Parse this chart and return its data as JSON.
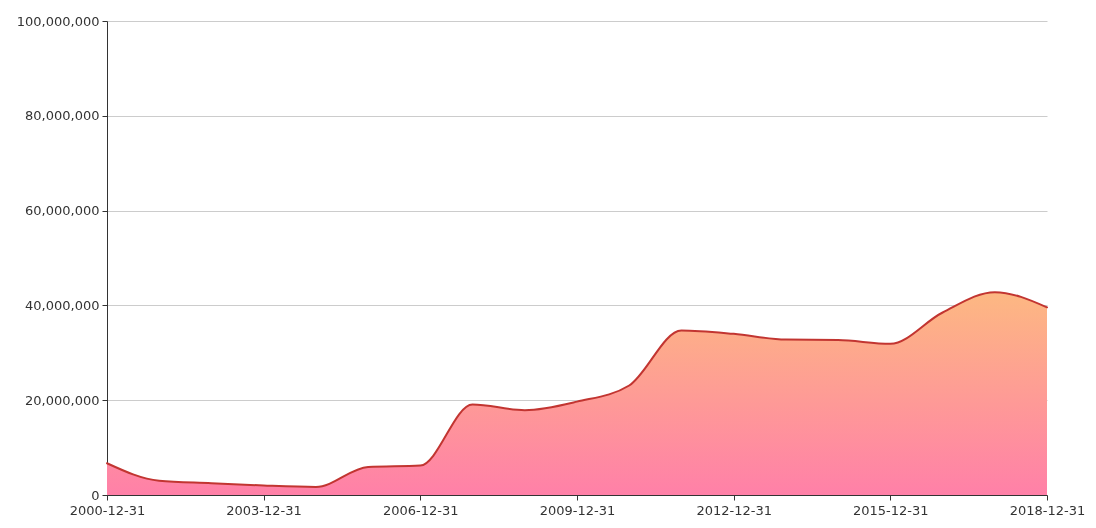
{
  "chart_data": {
    "type": "area",
    "x": [
      "2000-12-31",
      "2001-12-31",
      "2002-12-31",
      "2003-12-31",
      "2004-12-31",
      "2005-12-31",
      "2006-12-31",
      "2007-12-31",
      "2008-12-31",
      "2009-12-31",
      "2010-12-31",
      "2011-12-31",
      "2012-12-31",
      "2013-12-31",
      "2014-12-31",
      "2015-12-31",
      "2016-12-31",
      "2017-12-31",
      "2018-12-31"
    ],
    "series": [
      {
        "color": "#c23531",
        "values": [
          6700000,
          3000000,
          2500000,
          2000000,
          1700000,
          5900000,
          6200000,
          19100000,
          17900000,
          19700000,
          23100000,
          34700000,
          34000000,
          32800000,
          32700000,
          31900000,
          38500000,
          42800000,
          39600000
        ]
      }
    ],
    "xlim": [
      "2000-12-31",
      "2018-12-31"
    ],
    "xticks": [
      "2000-12-31",
      "2003-12-31",
      "2006-12-31",
      "2009-12-31",
      "2012-12-31",
      "2015-12-31",
      "2018-12-31"
    ],
    "ylim": [
      0,
      100000000
    ],
    "yticks": [
      0,
      {
        "value": 20000000,
        "label": "20,000,000"
      },
      {
        "value": 40000000,
        "label": "40,000,000"
      },
      {
        "value": 60000000,
        "label": "60,000,000"
      },
      {
        "value": 80000000,
        "label": "80,000,000"
      },
      {
        "value": 100000000,
        "label": "100,000,000"
      }
    ],
    "grid": "y",
    "line_style": "solid"
  }
}
